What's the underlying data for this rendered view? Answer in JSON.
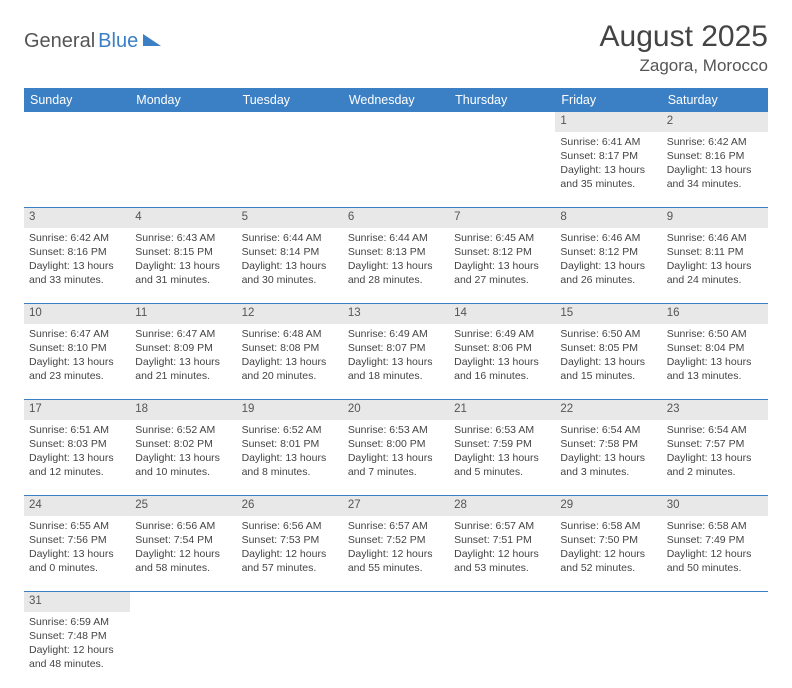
{
  "brand": {
    "part1": "General",
    "part2": "Blue"
  },
  "header": {
    "title": "August 2025",
    "location": "Zagora, Morocco"
  },
  "colors": {
    "accent": "#3b7fc4",
    "dayrow_bg": "#e8e8e8",
    "text": "#444444"
  },
  "weekdays": [
    "Sunday",
    "Monday",
    "Tuesday",
    "Wednesday",
    "Thursday",
    "Friday",
    "Saturday"
  ],
  "weeks": [
    [
      null,
      null,
      null,
      null,
      null,
      {
        "n": "1",
        "sunrise": "Sunrise: 6:41 AM",
        "sunset": "Sunset: 8:17 PM",
        "daylight": "Daylight: 13 hours and 35 minutes."
      },
      {
        "n": "2",
        "sunrise": "Sunrise: 6:42 AM",
        "sunset": "Sunset: 8:16 PM",
        "daylight": "Daylight: 13 hours and 34 minutes."
      }
    ],
    [
      {
        "n": "3",
        "sunrise": "Sunrise: 6:42 AM",
        "sunset": "Sunset: 8:16 PM",
        "daylight": "Daylight: 13 hours and 33 minutes."
      },
      {
        "n": "4",
        "sunrise": "Sunrise: 6:43 AM",
        "sunset": "Sunset: 8:15 PM",
        "daylight": "Daylight: 13 hours and 31 minutes."
      },
      {
        "n": "5",
        "sunrise": "Sunrise: 6:44 AM",
        "sunset": "Sunset: 8:14 PM",
        "daylight": "Daylight: 13 hours and 30 minutes."
      },
      {
        "n": "6",
        "sunrise": "Sunrise: 6:44 AM",
        "sunset": "Sunset: 8:13 PM",
        "daylight": "Daylight: 13 hours and 28 minutes."
      },
      {
        "n": "7",
        "sunrise": "Sunrise: 6:45 AM",
        "sunset": "Sunset: 8:12 PM",
        "daylight": "Daylight: 13 hours and 27 minutes."
      },
      {
        "n": "8",
        "sunrise": "Sunrise: 6:46 AM",
        "sunset": "Sunset: 8:12 PM",
        "daylight": "Daylight: 13 hours and 26 minutes."
      },
      {
        "n": "9",
        "sunrise": "Sunrise: 6:46 AM",
        "sunset": "Sunset: 8:11 PM",
        "daylight": "Daylight: 13 hours and 24 minutes."
      }
    ],
    [
      {
        "n": "10",
        "sunrise": "Sunrise: 6:47 AM",
        "sunset": "Sunset: 8:10 PM",
        "daylight": "Daylight: 13 hours and 23 minutes."
      },
      {
        "n": "11",
        "sunrise": "Sunrise: 6:47 AM",
        "sunset": "Sunset: 8:09 PM",
        "daylight": "Daylight: 13 hours and 21 minutes."
      },
      {
        "n": "12",
        "sunrise": "Sunrise: 6:48 AM",
        "sunset": "Sunset: 8:08 PM",
        "daylight": "Daylight: 13 hours and 20 minutes."
      },
      {
        "n": "13",
        "sunrise": "Sunrise: 6:49 AM",
        "sunset": "Sunset: 8:07 PM",
        "daylight": "Daylight: 13 hours and 18 minutes."
      },
      {
        "n": "14",
        "sunrise": "Sunrise: 6:49 AM",
        "sunset": "Sunset: 8:06 PM",
        "daylight": "Daylight: 13 hours and 16 minutes."
      },
      {
        "n": "15",
        "sunrise": "Sunrise: 6:50 AM",
        "sunset": "Sunset: 8:05 PM",
        "daylight": "Daylight: 13 hours and 15 minutes."
      },
      {
        "n": "16",
        "sunrise": "Sunrise: 6:50 AM",
        "sunset": "Sunset: 8:04 PM",
        "daylight": "Daylight: 13 hours and 13 minutes."
      }
    ],
    [
      {
        "n": "17",
        "sunrise": "Sunrise: 6:51 AM",
        "sunset": "Sunset: 8:03 PM",
        "daylight": "Daylight: 13 hours and 12 minutes."
      },
      {
        "n": "18",
        "sunrise": "Sunrise: 6:52 AM",
        "sunset": "Sunset: 8:02 PM",
        "daylight": "Daylight: 13 hours and 10 minutes."
      },
      {
        "n": "19",
        "sunrise": "Sunrise: 6:52 AM",
        "sunset": "Sunset: 8:01 PM",
        "daylight": "Daylight: 13 hours and 8 minutes."
      },
      {
        "n": "20",
        "sunrise": "Sunrise: 6:53 AM",
        "sunset": "Sunset: 8:00 PM",
        "daylight": "Daylight: 13 hours and 7 minutes."
      },
      {
        "n": "21",
        "sunrise": "Sunrise: 6:53 AM",
        "sunset": "Sunset: 7:59 PM",
        "daylight": "Daylight: 13 hours and 5 minutes."
      },
      {
        "n": "22",
        "sunrise": "Sunrise: 6:54 AM",
        "sunset": "Sunset: 7:58 PM",
        "daylight": "Daylight: 13 hours and 3 minutes."
      },
      {
        "n": "23",
        "sunrise": "Sunrise: 6:54 AM",
        "sunset": "Sunset: 7:57 PM",
        "daylight": "Daylight: 13 hours and 2 minutes."
      }
    ],
    [
      {
        "n": "24",
        "sunrise": "Sunrise: 6:55 AM",
        "sunset": "Sunset: 7:56 PM",
        "daylight": "Daylight: 13 hours and 0 minutes."
      },
      {
        "n": "25",
        "sunrise": "Sunrise: 6:56 AM",
        "sunset": "Sunset: 7:54 PM",
        "daylight": "Daylight: 12 hours and 58 minutes."
      },
      {
        "n": "26",
        "sunrise": "Sunrise: 6:56 AM",
        "sunset": "Sunset: 7:53 PM",
        "daylight": "Daylight: 12 hours and 57 minutes."
      },
      {
        "n": "27",
        "sunrise": "Sunrise: 6:57 AM",
        "sunset": "Sunset: 7:52 PM",
        "daylight": "Daylight: 12 hours and 55 minutes."
      },
      {
        "n": "28",
        "sunrise": "Sunrise: 6:57 AM",
        "sunset": "Sunset: 7:51 PM",
        "daylight": "Daylight: 12 hours and 53 minutes."
      },
      {
        "n": "29",
        "sunrise": "Sunrise: 6:58 AM",
        "sunset": "Sunset: 7:50 PM",
        "daylight": "Daylight: 12 hours and 52 minutes."
      },
      {
        "n": "30",
        "sunrise": "Sunrise: 6:58 AM",
        "sunset": "Sunset: 7:49 PM",
        "daylight": "Daylight: 12 hours and 50 minutes."
      }
    ],
    [
      {
        "n": "31",
        "sunrise": "Sunrise: 6:59 AM",
        "sunset": "Sunset: 7:48 PM",
        "daylight": "Daylight: 12 hours and 48 minutes."
      },
      null,
      null,
      null,
      null,
      null,
      null
    ]
  ]
}
